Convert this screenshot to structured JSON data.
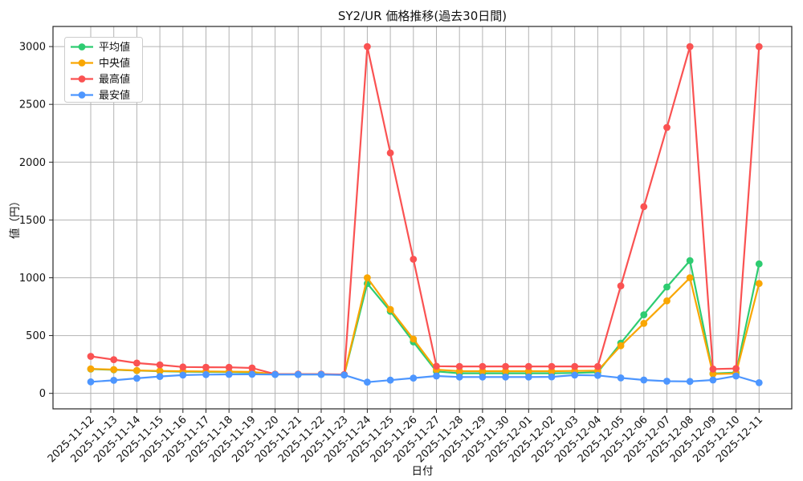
{
  "chart_data": {
    "type": "line",
    "title": "SY2/UR 価格推移(過去30日間)",
    "xlabel": "日付",
    "ylabel": "値（円）",
    "x": [
      "2025-11-12",
      "2025-11-13",
      "2025-11-14",
      "2025-11-15",
      "2025-11-16",
      "2025-11-17",
      "2025-11-18",
      "2025-11-19",
      "2025-11-20",
      "2025-11-21",
      "2025-11-22",
      "2025-11-23",
      "2025-11-24",
      "2025-11-25",
      "2025-11-26",
      "2025-11-27",
      "2025-11-28",
      "2025-11-29",
      "2025-11-30",
      "2025-12-01",
      "2025-12-02",
      "2025-12-03",
      "2025-12-04",
      "2025-12-05",
      "2025-12-06",
      "2025-12-07",
      "2025-12-08",
      "2025-12-09",
      "2025-12-10",
      "2025-12-11"
    ],
    "series": [
      {
        "name": "平均値",
        "color": "#2ecc71",
        "values": [
          210,
          204,
          197,
          192,
          188,
          186,
          184,
          181,
          164,
          164,
          164,
          161,
          950,
          710,
          445,
          190,
          174,
          174,
          174,
          174,
          174,
          177,
          182,
          435,
          680,
          920,
          1148,
          172,
          180,
          1120
        ]
      },
      {
        "name": "中央値",
        "color": "#f9a602",
        "values": [
          212,
          206,
          198,
          194,
          191,
          190,
          188,
          186,
          165,
          165,
          165,
          162,
          1000,
          726,
          470,
          205,
          192,
          192,
          192,
          192,
          192,
          194,
          196,
          412,
          605,
          800,
          1000,
          168,
          172,
          950
        ]
      },
      {
        "name": "最高値",
        "color": "#fa5252",
        "values": [
          320,
          292,
          262,
          247,
          228,
          226,
          225,
          220,
          166,
          166,
          166,
          163,
          3000,
          2080,
          1160,
          235,
          233,
          233,
          233,
          233,
          233,
          233,
          232,
          930,
          1615,
          2300,
          3000,
          210,
          215,
          3000
        ]
      },
      {
        "name": "最安値",
        "color": "#4d96ff",
        "values": [
          100,
          113,
          130,
          146,
          158,
          162,
          164,
          165,
          163,
          163,
          163,
          159,
          97,
          114,
          132,
          150,
          141,
          141,
          141,
          141,
          143,
          158,
          155,
          134,
          116,
          105,
          103,
          116,
          150,
          92
        ]
      }
    ],
    "yticks": [
      0,
      500,
      1000,
      1500,
      2000,
      2500,
      3000
    ],
    "ylim": [
      -134,
      3174
    ],
    "grid": true,
    "legend_position": "upper-left",
    "grid_color": "#b3b3b3",
    "axis_color": "#262626"
  }
}
